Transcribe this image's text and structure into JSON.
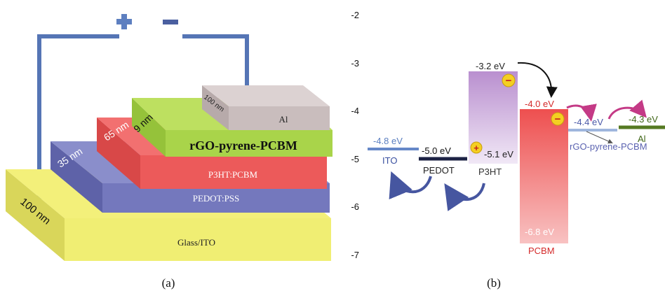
{
  "colors": {
    "electrode_wire": "#5575b5",
    "plus_sign": "#5d7fc0",
    "minus_sign": "#4a5fa0",
    "glass_ito": "#f0ee73",
    "pedot_pss": "#7478bd",
    "p3ht_pcbm": "#ec5a5a",
    "rgo_pyrene_pcbm": "#a9d44a",
    "al": "#c9bdbd",
    "ito_level": "#6688c8",
    "pedot_level": "#1c2244",
    "p3ht_box": "#c39bd4",
    "pcbm_box": "#ee5a5a",
    "rgo_level": "#9fb6dd",
    "al_level": "#557a22",
    "electron": "#f4cf22",
    "hole": "#f4cf22",
    "arrow_electron": "#c43a86",
    "arrow_hole": "#4656a0"
  },
  "panel_a": {
    "caption": "(a)",
    "plus_label": "+",
    "minus_label": "−",
    "layers": [
      {
        "name": "Glass/ITO",
        "thickness": "100 nm"
      },
      {
        "name": "PEDOT:PSS",
        "thickness": "35 nm"
      },
      {
        "name": "P3HT:PCBM",
        "thickness": "65 nm"
      },
      {
        "name": "rGO-pyrene-PCBM",
        "thickness": "9 nm"
      },
      {
        "name": "Al",
        "thickness": "100 nm"
      }
    ]
  },
  "panel_b": {
    "caption": "(b)",
    "y_ticks": [
      "-2",
      "-3",
      "-4",
      "-5",
      "-6",
      "-7"
    ],
    "materials": [
      {
        "name": "ITO",
        "levels": [
          "-4.8 eV"
        ]
      },
      {
        "name": "PEDOT",
        "levels": [
          "-5.0 eV"
        ]
      },
      {
        "name": "P3HT",
        "levels": [
          "-3.2 eV",
          "-5.1 eV"
        ]
      },
      {
        "name": "PCBM",
        "levels": [
          "-4.0 eV",
          "-6.8 eV"
        ]
      },
      {
        "name": "rGO-pyrene-PCBM",
        "levels": [
          "-4.4 eV"
        ]
      },
      {
        "name": "Al",
        "levels": [
          "-4.3 eV"
        ]
      }
    ],
    "electron_symbol": "−",
    "hole_symbol": "+"
  }
}
